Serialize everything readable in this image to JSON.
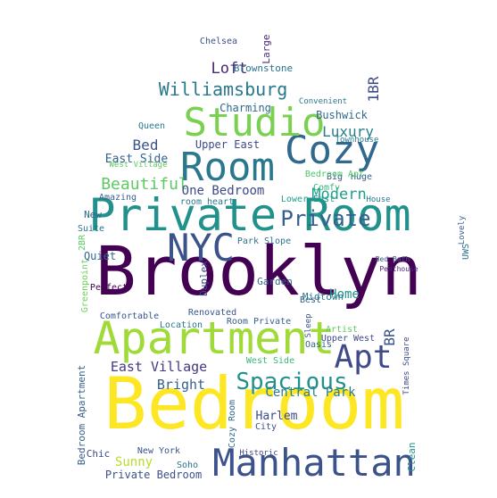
{
  "words": [
    "Brooklyn",
    "Bedroom",
    "Apartment",
    "Private Room",
    "Manhattan",
    "Room",
    "Cozy",
    "Studio",
    "NYC",
    "Apt",
    "Spacious",
    "Williamsburg",
    "Private",
    "Beautiful",
    "Modern",
    "Luxury",
    "Bed",
    "Loft",
    "Brownstone",
    "Charming",
    "Bushwick",
    "Upper East",
    "East Side",
    "East Village",
    "Bright",
    "Central Park",
    "Harlem",
    "Sunny",
    "Private Bedroom",
    "Quiet",
    "Home",
    "Midtown",
    "One Bedroom",
    "Garden",
    "Renovated",
    "Park Slope",
    "1BR",
    "Large",
    "Greenpoint",
    "Upper West",
    "BR",
    "Bedroom Apartment",
    "Chelsea",
    "Convenient",
    "New York",
    "Soho",
    "Historic",
    "Clean",
    "Times Square",
    "Big",
    "Huge",
    "Comfy",
    "Artist",
    "Oasis",
    "Duplex",
    "Townhouse",
    "Amazing",
    "Suite",
    "2BR",
    "Queen",
    "Perfect",
    "Comfortable",
    "Location",
    "West Village",
    "House",
    "Bed Bath",
    "Penthouse",
    "UWS",
    "Room Private",
    "Best",
    "West Side",
    "Cozy Room",
    "City",
    "Sleep",
    "Lovely",
    "New",
    "Chic",
    "room heart",
    "Bedroom Apt",
    "Lower East"
  ]
}
